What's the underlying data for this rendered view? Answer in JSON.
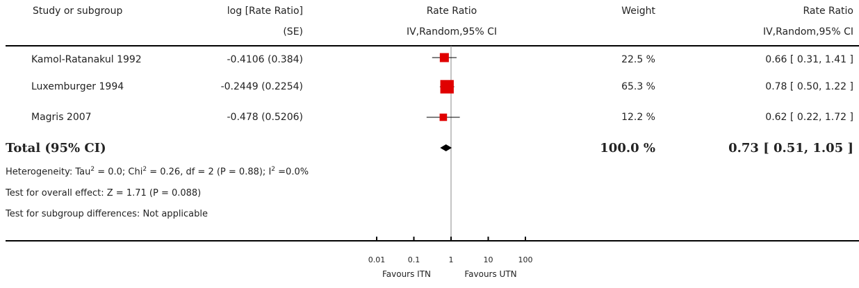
{
  "header": {
    "study_label": "Study or subgroup",
    "log_line1": "log [Rate Ratio]",
    "log_line2": "(SE)",
    "rr_line1": "Rate Ratio",
    "rr_line2": "IV,Random,95% CI",
    "weight": "Weight",
    "rr2_line1": "Rate Ratio",
    "rr2_line2": "IV,Random,95% CI"
  },
  "studies": [
    {
      "name": "Kamol-Ratanakul 1992",
      "log_se": "-0.4106 (0.384)",
      "weight": "22.5 %",
      "ci_text": "0.66 [ 0.31, 1.41 ]"
    },
    {
      "name": "Luxemburger 1994",
      "log_se": "-0.2449 (0.2254)",
      "weight": "65.3 %",
      "ci_text": "0.78 [ 0.50, 1.22 ]"
    },
    {
      "name": "Magris 2007",
      "log_se": "-0.478 (0.5206)",
      "weight": "12.2 %",
      "ci_text": "0.62 [ 0.22, 1.72 ]"
    }
  ],
  "total": {
    "label": "Total (95% CI)",
    "weight": "100.0 %",
    "ci_text": "0.73 [ 0.51, 1.05 ]"
  },
  "notes": {
    "heterogeneity_a": "Heterogeneity: Tau",
    "heterogeneity_b": " = 0.0; Chi",
    "heterogeneity_c": " = 0.26, df = 2 (P = 0.88); I",
    "heterogeneity_d": " =0.0%",
    "sup2": "2",
    "overall": "Test for overall effect: Z = 1.71  (P = 0.088)",
    "subgroup": "Test for subgroup differences: Not applicable"
  },
  "axis": {
    "ticks": [
      "0.01",
      "0.1",
      "1",
      "10",
      "100"
    ],
    "favours_left": "Favours ITN",
    "favours_right": "Favours UTN"
  },
  "chart_data": {
    "type": "scatter",
    "scale": "log",
    "xlim": [
      0.01,
      100
    ],
    "tick_values": [
      0.01,
      0.1,
      1,
      10,
      100
    ],
    "studies": [
      {
        "name": "Kamol-Ratanakul 1992",
        "rr": 0.66,
        "lower": 0.31,
        "upper": 1.41,
        "weight": 22.5
      },
      {
        "name": "Luxemburger 1994",
        "rr": 0.78,
        "lower": 0.5,
        "upper": 1.22,
        "weight": 65.3
      },
      {
        "name": "Magris 2007",
        "rr": 0.62,
        "lower": 0.22,
        "upper": 1.72,
        "weight": 12.2
      }
    ],
    "pooled": {
      "rr": 0.73,
      "lower": 0.51,
      "upper": 1.05
    },
    "colors": {
      "study_marker": "#e00000",
      "pooled_marker": "#000000"
    }
  }
}
